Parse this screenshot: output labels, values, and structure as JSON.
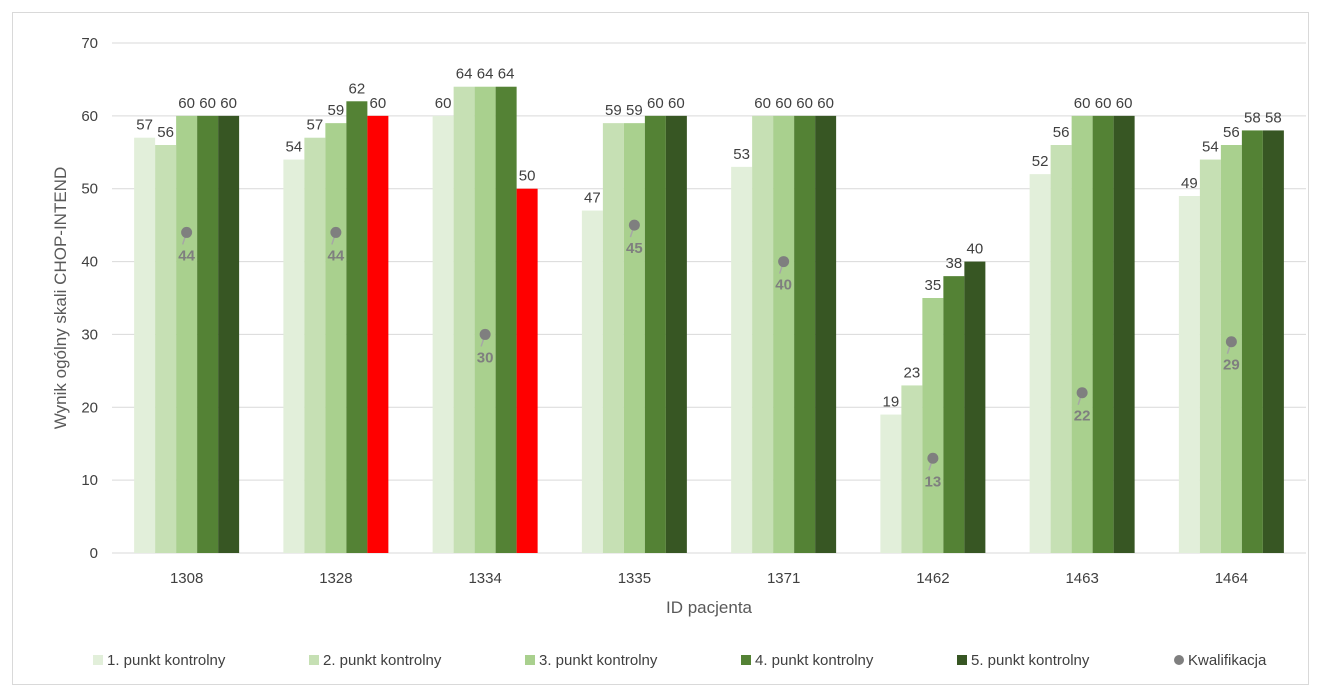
{
  "chart_data": {
    "type": "bar",
    "xlabel": "ID pacjenta",
    "ylabel": "Wynik ogólny skali CHOP-INTEND",
    "ylim": [
      0,
      70
    ],
    "yticks": [
      0,
      10,
      20,
      30,
      40,
      50,
      60,
      70
    ],
    "categories": [
      "1308",
      "1328",
      "1334",
      "1335",
      "1371",
      "1462",
      "1463",
      "1464"
    ],
    "series": [
      {
        "name": "1. punkt kontrolny",
        "color": "#e2efda",
        "values": [
          57,
          54,
          60,
          47,
          53,
          19,
          52,
          49
        ]
      },
      {
        "name": "2. punkt kontrolny",
        "color": "#c6e0b4",
        "values": [
          56,
          57,
          64,
          59,
          60,
          23,
          56,
          54
        ]
      },
      {
        "name": "3. punkt kontrolny",
        "color": "#a9d08e",
        "values": [
          60,
          59,
          64,
          59,
          60,
          35,
          60,
          56
        ]
      },
      {
        "name": "4. punkt kontrolny",
        "color": "#548235",
        "values": [
          60,
          62,
          64,
          60,
          60,
          38,
          60,
          58
        ]
      },
      {
        "name": "5. punkt kontrolny",
        "color": "#375623",
        "values": [
          60,
          60,
          50,
          60,
          60,
          40,
          60,
          58
        ]
      }
    ],
    "highlighted_bars": [
      {
        "series": "5. punkt kontrolny",
        "category": "1328",
        "color": "#ff0000"
      },
      {
        "series": "5. punkt kontrolny",
        "category": "1334",
        "color": "#ff0000"
      }
    ],
    "qualification": {
      "name": "Kwalifikacja",
      "color": "#7f7f7f",
      "values": [
        44,
        44,
        30,
        45,
        40,
        13,
        22,
        29
      ]
    },
    "grid": true,
    "legend_position": "bottom"
  }
}
